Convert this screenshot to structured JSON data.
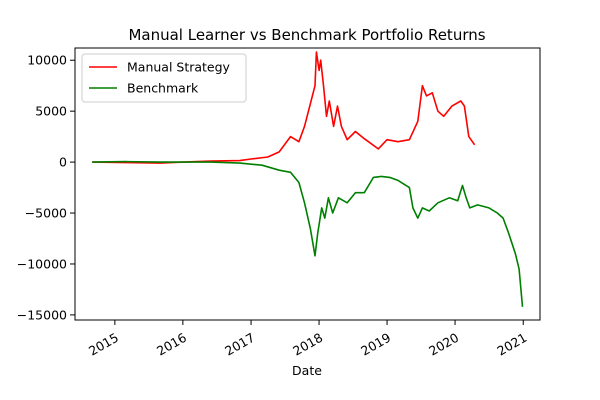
{
  "chart_data": {
    "type": "line",
    "title": "Manual Learner vs Benchmark Portfolio Returns",
    "xlabel": "Date",
    "ylabel": "",
    "x_ticks": [
      "2015",
      "2016",
      "2017",
      "2018",
      "2019",
      "2020",
      "2021"
    ],
    "y_ticks": [
      10000,
      5000,
      0,
      -5000,
      -10000,
      -15000
    ],
    "y_tick_labels": [
      "10000",
      "5000",
      "0",
      "−5000",
      "−10000",
      "−15000"
    ],
    "xlim": [
      "2014-06-01",
      "2021-04-01"
    ],
    "ylim": [
      -15500,
      11200
    ],
    "grid": false,
    "legend_position": "upper left",
    "series": [
      {
        "name": "Manual Strategy",
        "color": "#ff0000",
        "points": [
          [
            "2014-09-01",
            0
          ],
          [
            "2015-03-01",
            -50
          ],
          [
            "2015-09-01",
            -100
          ],
          [
            "2016-01-01",
            0
          ],
          [
            "2016-06-01",
            100
          ],
          [
            "2016-11-01",
            150
          ],
          [
            "2017-01-01",
            300
          ],
          [
            "2017-04-01",
            500
          ],
          [
            "2017-06-01",
            1000
          ],
          [
            "2017-08-01",
            2500
          ],
          [
            "2017-09-15",
            2000
          ],
          [
            "2017-10-15",
            3500
          ],
          [
            "2017-12-10",
            7500
          ],
          [
            "2017-12-18",
            10800
          ],
          [
            "2018-01-01",
            9000
          ],
          [
            "2018-01-10",
            10000
          ],
          [
            "2018-01-25",
            7500
          ],
          [
            "2018-02-10",
            4500
          ],
          [
            "2018-02-25",
            6000
          ],
          [
            "2018-03-20",
            3500
          ],
          [
            "2018-04-10",
            5500
          ],
          [
            "2018-05-01",
            3500
          ],
          [
            "2018-06-01",
            2200
          ],
          [
            "2018-07-15",
            3000
          ],
          [
            "2018-09-01",
            2300
          ],
          [
            "2018-11-15",
            1300
          ],
          [
            "2019-01-01",
            2200
          ],
          [
            "2019-03-01",
            2000
          ],
          [
            "2019-05-01",
            2200
          ],
          [
            "2019-06-15",
            4000
          ],
          [
            "2019-07-10",
            7500
          ],
          [
            "2019-08-01",
            6500
          ],
          [
            "2019-09-01",
            6800
          ],
          [
            "2019-10-01",
            5000
          ],
          [
            "2019-11-01",
            4500
          ],
          [
            "2019-12-15",
            5500
          ],
          [
            "2020-02-01",
            6000
          ],
          [
            "2020-02-20",
            5500
          ],
          [
            "2020-03-15",
            2500
          ],
          [
            "2020-04-15",
            1700
          ]
        ]
      },
      {
        "name": "Benchmark",
        "color": "#008000",
        "points": [
          [
            "2014-09-01",
            0
          ],
          [
            "2015-03-01",
            50
          ],
          [
            "2015-09-01",
            0
          ],
          [
            "2016-06-01",
            0
          ],
          [
            "2016-11-01",
            -100
          ],
          [
            "2017-03-01",
            -300
          ],
          [
            "2017-06-01",
            -800
          ],
          [
            "2017-08-01",
            -1000
          ],
          [
            "2017-09-15",
            -2000
          ],
          [
            "2017-10-15",
            -4000
          ],
          [
            "2017-11-15",
            -6500
          ],
          [
            "2017-12-10",
            -9200
          ],
          [
            "2017-12-25",
            -7000
          ],
          [
            "2018-01-15",
            -4500
          ],
          [
            "2018-02-01",
            -5500
          ],
          [
            "2018-02-20",
            -3500
          ],
          [
            "2018-03-15",
            -5000
          ],
          [
            "2018-04-15",
            -3500
          ],
          [
            "2018-06-01",
            -4000
          ],
          [
            "2018-07-15",
            -3000
          ],
          [
            "2018-09-01",
            -3000
          ],
          [
            "2018-10-20",
            -1500
          ],
          [
            "2018-12-01",
            -1400
          ],
          [
            "2019-01-15",
            -1500
          ],
          [
            "2019-03-01",
            -1800
          ],
          [
            "2019-05-01",
            -2500
          ],
          [
            "2019-05-20",
            -4500
          ],
          [
            "2019-06-15",
            -5500
          ],
          [
            "2019-07-10",
            -4500
          ],
          [
            "2019-08-15",
            -4800
          ],
          [
            "2019-10-01",
            -4000
          ],
          [
            "2019-12-01",
            -3500
          ],
          [
            "2020-01-15",
            -3800
          ],
          [
            "2020-02-10",
            -2300
          ],
          [
            "2020-03-01",
            -3500
          ],
          [
            "2020-03-20",
            -4500
          ],
          [
            "2020-05-01",
            -4200
          ],
          [
            "2020-07-01",
            -4500
          ],
          [
            "2020-08-15",
            -5000
          ],
          [
            "2020-09-15",
            -5500
          ],
          [
            "2020-10-15",
            -7000
          ],
          [
            "2020-11-20",
            -9000
          ],
          [
            "2020-12-10",
            -10500
          ],
          [
            "2020-12-28",
            -14200
          ]
        ]
      }
    ]
  }
}
